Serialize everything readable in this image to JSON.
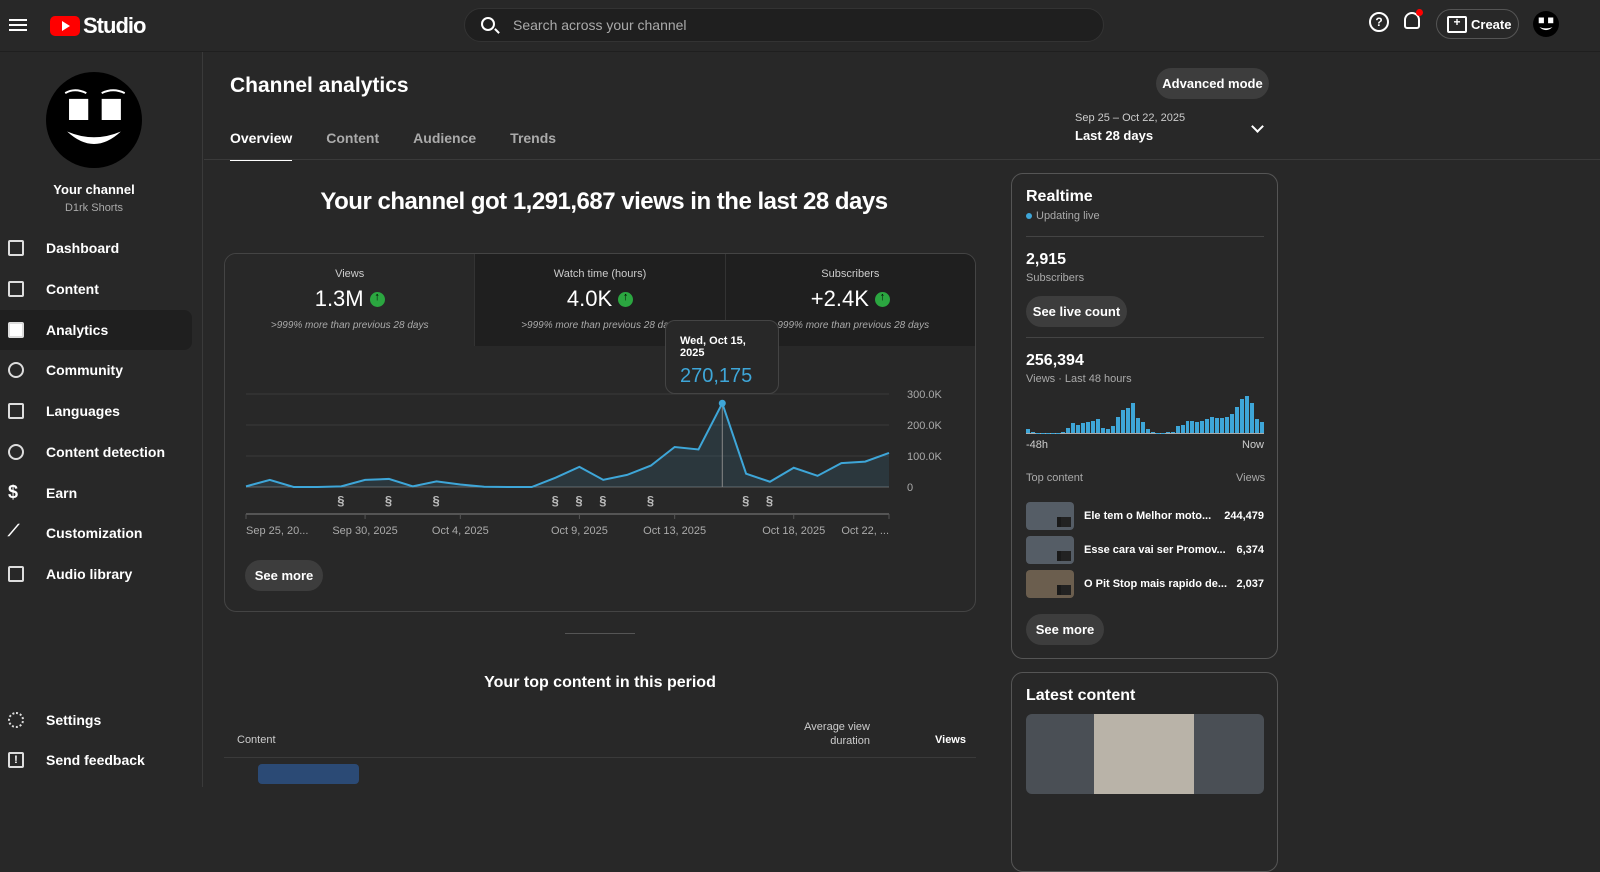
{
  "header": {
    "brand": "Studio",
    "search_placeholder": "Search across your channel",
    "create_label": "Create",
    "help_icon": "?"
  },
  "sidebar": {
    "channel_label": "Your channel",
    "channel_name": "D1rk Shorts",
    "items": [
      {
        "label": "Dashboard"
      },
      {
        "label": "Content"
      },
      {
        "label": "Analytics"
      },
      {
        "label": "Community"
      },
      {
        "label": "Languages"
      },
      {
        "label": "Content detection"
      },
      {
        "label": "Earn"
      },
      {
        "label": "Customization"
      },
      {
        "label": "Audio library"
      }
    ],
    "bottom": [
      {
        "label": "Settings"
      },
      {
        "label": "Send feedback"
      }
    ]
  },
  "page": {
    "title": "Channel analytics",
    "advanced_mode": "Advanced mode",
    "tabs": [
      {
        "label": "Overview"
      },
      {
        "label": "Content"
      },
      {
        "label": "Audience"
      },
      {
        "label": "Trends"
      }
    ],
    "date_range": "Sep 25 – Oct 22, 2025",
    "period": "Last 28 days",
    "headline": "Your channel got 1,291,687 views in the last 28 days",
    "metrics": [
      {
        "label": "Views",
        "value": "1.3M",
        "change": ">999% more than previous 28 days"
      },
      {
        "label": "Watch time (hours)",
        "value": "4.0K",
        "change": ">999% more than previous 28 days"
      },
      {
        "label": "Subscribers",
        "value": "+2.4K",
        "change": ">999% more than previous 28 days"
      }
    ],
    "tooltip": {
      "date": "Wed, Oct 15, 2025",
      "value": "270,175"
    },
    "see_more": "See more",
    "top_content_title": "Your top content in this period",
    "table_headers": {
      "content": "Content",
      "avg": "Average view duration",
      "views": "Views"
    }
  },
  "chart_data": {
    "type": "line",
    "title": "Views",
    "x": [
      "Sep 25",
      "Sep 26",
      "Sep 27",
      "Sep 28",
      "Sep 29",
      "Sep 30",
      "Oct 1",
      "Oct 2",
      "Oct 3",
      "Oct 4",
      "Oct 5",
      "Oct 6",
      "Oct 7",
      "Oct 8",
      "Oct 9",
      "Oct 10",
      "Oct 11",
      "Oct 12",
      "Oct 13",
      "Oct 14",
      "Oct 15",
      "Oct 16",
      "Oct 17",
      "Oct 18",
      "Oct 19",
      "Oct 20",
      "Oct 21",
      "Oct 22"
    ],
    "values": [
      2000,
      23000,
      0,
      0,
      2000,
      23000,
      26000,
      2000,
      18000,
      8000,
      1000,
      0,
      0,
      30000,
      65000,
      23000,
      39000,
      69000,
      129000,
      121000,
      270175,
      43000,
      17000,
      62000,
      36000,
      77000,
      82000,
      110000
    ],
    "ylim": [
      0,
      300000
    ],
    "y_ticks": [
      "0",
      "100.0K",
      "200.0K",
      "300.0K"
    ],
    "x_tick_labels": [
      "Sep 25, 20...",
      "Sep 30, 2025",
      "Oct 4, 2025",
      "Oct 9, 2025",
      "Oct 13, 2025",
      "Oct 18, 2025",
      "Oct 22, ..."
    ],
    "x_tick_index": [
      0,
      5,
      9,
      14,
      18,
      23,
      27
    ],
    "shorts_marker_index": [
      4,
      6,
      8,
      13,
      14,
      15,
      17,
      21,
      22
    ],
    "color": "#3ea6d8",
    "highlight_index": 20
  },
  "realtime": {
    "title": "Realtime",
    "status": "Updating live",
    "subscribers": "2,915",
    "subscribers_label": "Subscribers",
    "see_live": "See live count",
    "views": "256,394",
    "views_label": "Views · Last 48 hours",
    "bars": [
      3,
      1,
      0,
      0,
      0,
      0,
      0,
      1,
      4,
      7,
      6,
      7,
      8,
      9,
      10,
      4,
      3,
      5,
      12,
      17,
      18,
      22,
      11,
      8,
      3,
      1,
      0,
      0,
      1,
      1,
      5,
      6,
      9,
      9,
      8,
      9,
      10,
      12,
      11,
      11,
      12,
      14,
      19,
      25,
      27,
      22,
      10,
      8
    ],
    "axis_start": "-48h",
    "axis_end": "Now",
    "top_content": "Top content",
    "views_col": "Views",
    "items": [
      {
        "title": "Ele tem o Melhor moto...",
        "views": "244,479"
      },
      {
        "title": "Esse cara vai ser Promov...",
        "views": "6,374"
      },
      {
        "title": "O Pit Stop mais rapido de...",
        "views": "2,037"
      }
    ],
    "see_more": "See more"
  },
  "latest": {
    "title": "Latest content"
  }
}
